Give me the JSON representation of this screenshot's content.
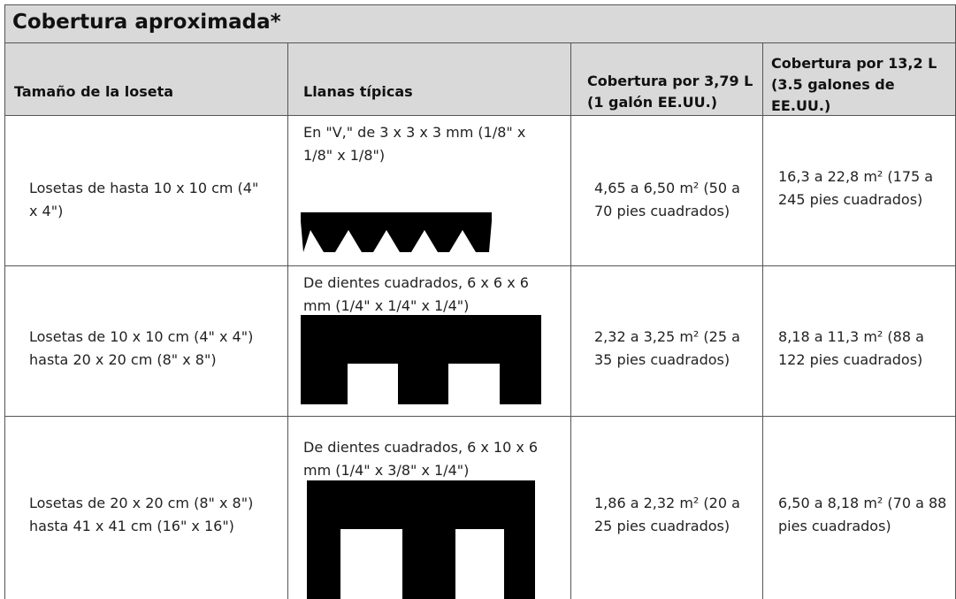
{
  "title": "Cobertura aproximada*",
  "table": {
    "header": [
      "Tamaño de la loseta",
      "Llanas típicas",
      "Cobertura por 3,79 L (1 galón EE.UU.)",
      "Cobertura por 13,2 L (3.5 galones de EE.UU.)"
    ],
    "rows": [
      [
        "Losetas de hasta 10 x 10 cm (4\" x 4\")",
        "En \"V,\" de 3 x 3 x 3 mm (1/8\" x 1/8\" x 1/8\")",
        "4,65 a 6,50 m² (50 a 70 pies cuadrados)",
        "16,3 a 22,8 m² (175 a 245 pies cuadrados)"
      ],
      [
        "Losetas de 10 x 10 cm (4\" x 4\") hasta 20 x 20 cm (8\" x 8\")",
        "De dientes cuadrados, 6 x 6 x 6 mm (1/4\" x 1/4\" x 1/4\")",
        "2,32 a 3,25 m² (25 a 35 pies cuadrados)",
        "8,18 a 11,3 m² (88 a 122 pies cuadrados)"
      ],
      [
        "Losetas de 20 x 20 cm (8\" x 8\") hasta 41 x 41 cm (16\" x 16\")",
        "De dientes cuadrados, 6 x 10 x 6 mm (1/4\" x 3/8\" x 1/4\")",
        "1,86 a 2,32 m² (20 a 25 pies cuadrados)",
        "6,50 a 8,18 m² (70 a 88 pies cuadrados)"
      ]
    ]
  }
}
